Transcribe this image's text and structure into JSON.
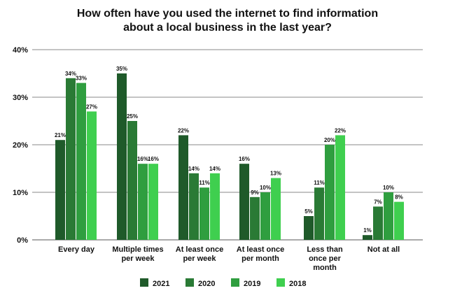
{
  "chart_data": {
    "type": "bar",
    "title_lines": [
      "How often have you used the internet to find information",
      "about a local business in the last year?"
    ],
    "categories": [
      [
        "Every day"
      ],
      [
        "Multiple times",
        "per week"
      ],
      [
        "At least once",
        "per week"
      ],
      [
        "At least once",
        "per month"
      ],
      [
        "Less than",
        "once per",
        "month"
      ],
      [
        "Not at all"
      ]
    ],
    "series": [
      {
        "name": "2021",
        "color": "#1f5a2a",
        "values": [
          21,
          35,
          22,
          16,
          5,
          1
        ]
      },
      {
        "name": "2020",
        "color": "#2a7a35",
        "values": [
          34,
          25,
          14,
          9,
          11,
          7
        ]
      },
      {
        "name": "2019",
        "color": "#2f9e3f",
        "values": [
          33,
          16,
          11,
          10,
          20,
          10
        ]
      },
      {
        "name": "2018",
        "color": "#3fcf4f",
        "values": [
          27,
          16,
          14,
          13,
          22,
          8
        ]
      }
    ],
    "ylim": [
      0,
      40
    ],
    "yticks": [
      0,
      10,
      20,
      30,
      40
    ],
    "ytick_labels": [
      "0%",
      "10%",
      "20%",
      "30%",
      "40%"
    ],
    "value_suffix": "%",
    "grid": true,
    "legend_position": "bottom-center",
    "xlabel": "",
    "ylabel": ""
  }
}
